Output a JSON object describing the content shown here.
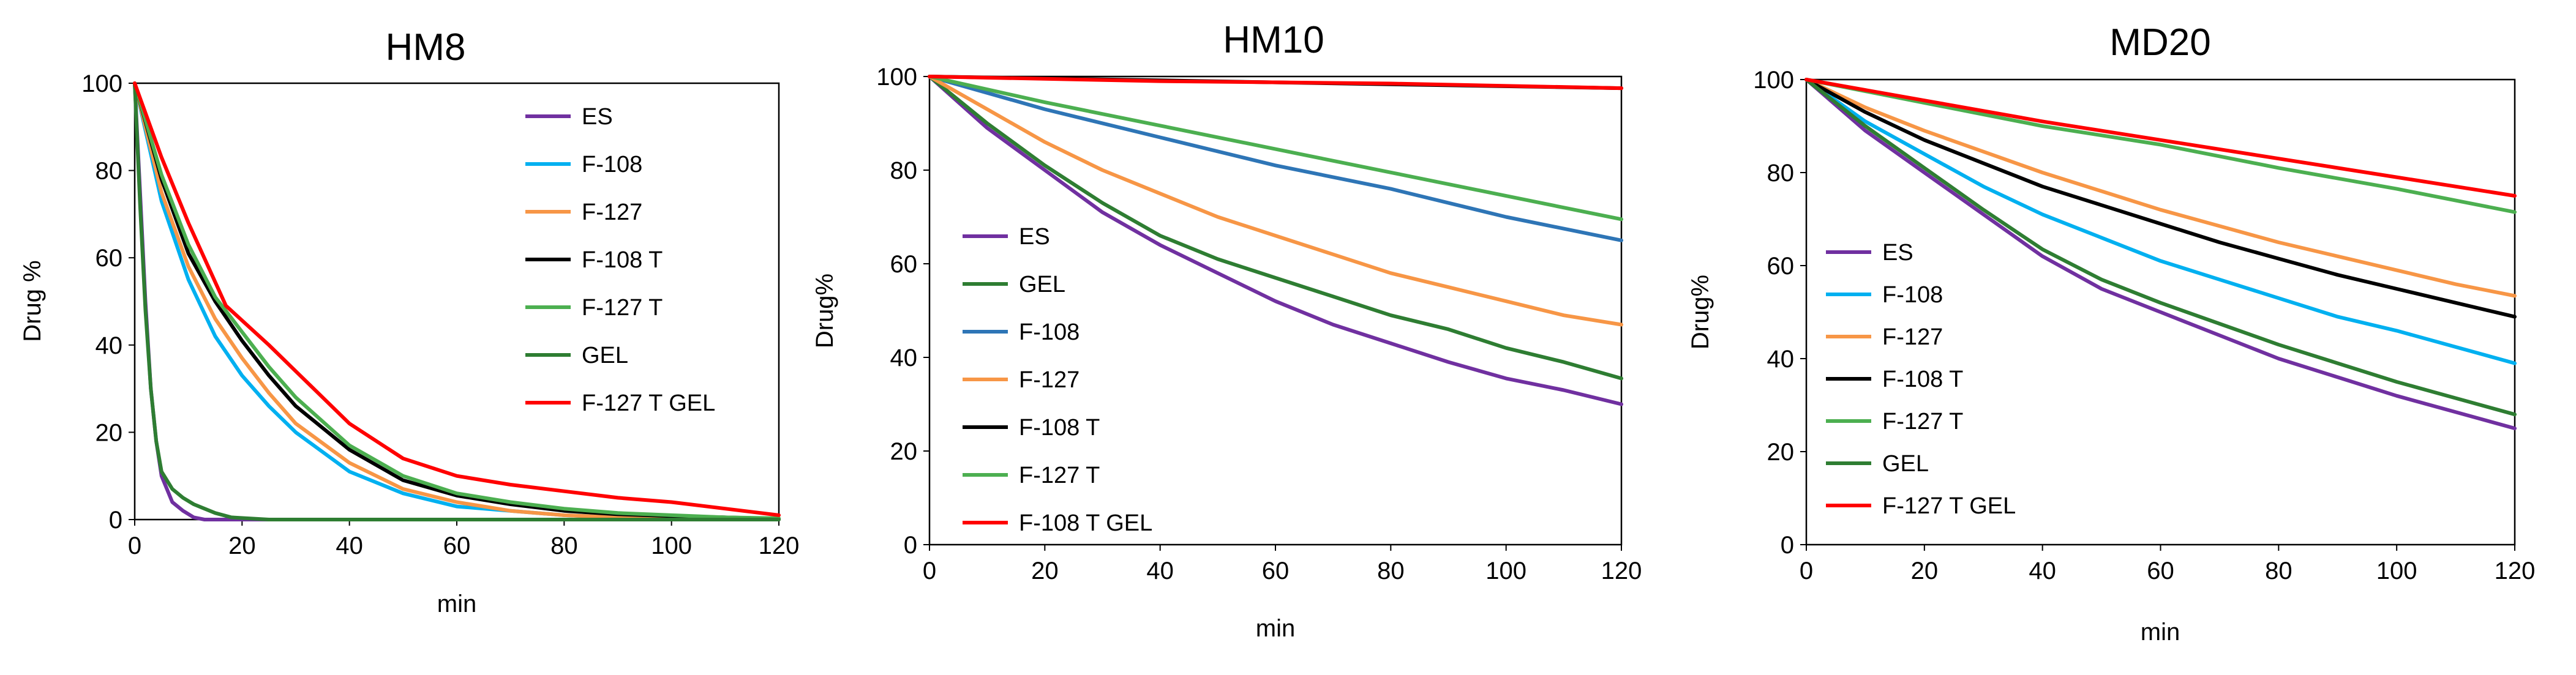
{
  "chart_data": [
    {
      "type": "line",
      "title": "HM8",
      "xlabel": "min",
      "ylabel": "Drug %",
      "xlim": [
        0,
        120
      ],
      "ylim": [
        0,
        100
      ],
      "xticks": [
        0,
        20,
        40,
        60,
        80,
        100,
        120
      ],
      "yticks": [
        0,
        20,
        40,
        60,
        80,
        100
      ],
      "legend_position": "top-right",
      "series": [
        {
          "name": "ES",
          "color": "#7030A0",
          "x": [
            0,
            1,
            2,
            3,
            4,
            5,
            7,
            9,
            11,
            13,
            15,
            20,
            40,
            60,
            80,
            100,
            120
          ],
          "y": [
            100,
            75,
            50,
            30,
            18,
            10,
            4,
            2,
            0.5,
            0,
            0,
            0,
            0,
            0,
            0,
            0,
            0
          ]
        },
        {
          "name": "F-108",
          "color": "#00B0F0",
          "x": [
            0,
            5,
            10,
            15,
            20,
            25,
            30,
            40,
            50,
            60,
            70,
            80,
            90,
            100,
            110,
            120
          ],
          "y": [
            100,
            73,
            55,
            42,
            33,
            26,
            20,
            11,
            6,
            3,
            2,
            1,
            0.5,
            0.3,
            0.2,
            0
          ]
        },
        {
          "name": "F-127",
          "color": "#F79646",
          "x": [
            0,
            5,
            10,
            15,
            20,
            25,
            30,
            40,
            50,
            60,
            70,
            80,
            90,
            100,
            110,
            120
          ],
          "y": [
            100,
            75,
            58,
            46,
            37,
            29,
            22,
            13,
            7,
            4,
            2,
            1,
            0.5,
            0.3,
            0.2,
            0
          ]
        },
        {
          "name": "F-108 T",
          "color": "#000000",
          "x": [
            0,
            5,
            10,
            15,
            20,
            25,
            30,
            40,
            50,
            60,
            70,
            80,
            90,
            100,
            110,
            120
          ],
          "y": [
            100,
            78,
            61,
            50,
            41,
            33,
            26,
            16,
            9,
            5.5,
            3.5,
            2,
            1.2,
            0.8,
            0.5,
            0.2
          ]
        },
        {
          "name": "F-127 T",
          "color": "#4CAF50",
          "x": [
            0,
            5,
            10,
            15,
            20,
            25,
            30,
            40,
            50,
            60,
            70,
            80,
            90,
            100,
            110,
            120
          ],
          "y": [
            100,
            79,
            63,
            51,
            43,
            35,
            28,
            17,
            10,
            6,
            4,
            2.5,
            1.5,
            1,
            0.5,
            0.3
          ]
        },
        {
          "name": "GEL",
          "color": "#2E7D32",
          "x": [
            0,
            1,
            2,
            3,
            4,
            5,
            7,
            9,
            11,
            13,
            15,
            18,
            25,
            40,
            60,
            80,
            100,
            120
          ],
          "y": [
            100,
            72,
            48,
            30,
            18,
            11,
            7,
            5,
            3.5,
            2.5,
            1.5,
            0.5,
            0,
            0,
            0,
            0,
            0,
            0
          ]
        },
        {
          "name": "F-127 T GEL",
          "color": "#FF0000",
          "x": [
            0,
            5,
            10,
            17,
            25,
            30,
            40,
            50,
            60,
            70,
            80,
            90,
            100,
            110,
            120
          ],
          "y": [
            100,
            83,
            68,
            49,
            40,
            34,
            22,
            14,
            10,
            8,
            6.5,
            5,
            4,
            2.5,
            1
          ]
        }
      ]
    },
    {
      "type": "line",
      "title": "HM10",
      "xlabel": "min",
      "ylabel": "Drug%",
      "xlim": [
        0,
        120
      ],
      "ylim": [
        0,
        100
      ],
      "xticks": [
        0,
        20,
        40,
        60,
        80,
        100,
        120
      ],
      "yticks": [
        0,
        20,
        40,
        60,
        80,
        100
      ],
      "legend_position": "bottom-left",
      "series": [
        {
          "name": "ES",
          "color": "#7030A0",
          "x": [
            0,
            10,
            20,
            30,
            40,
            50,
            60,
            70,
            80,
            90,
            100,
            110,
            120
          ],
          "y": [
            100,
            89,
            80,
            71,
            64,
            58,
            52,
            47,
            43,
            39,
            35.5,
            33,
            30
          ]
        },
        {
          "name": "GEL",
          "color": "#2E7D32",
          "x": [
            0,
            10,
            20,
            30,
            40,
            50,
            60,
            70,
            80,
            90,
            100,
            110,
            120
          ],
          "y": [
            100,
            90,
            81,
            73,
            66,
            61,
            57,
            53,
            49,
            46,
            42,
            39,
            35.5
          ]
        },
        {
          "name": "F-108",
          "color": "#2E75B6",
          "x": [
            0,
            20,
            40,
            60,
            80,
            100,
            120
          ],
          "y": [
            100,
            93,
            87,
            81,
            76,
            70,
            65
          ]
        },
        {
          "name": "F-127",
          "color": "#F79646",
          "x": [
            0,
            10,
            20,
            30,
            40,
            50,
            60,
            70,
            80,
            90,
            100,
            110,
            120
          ],
          "y": [
            100,
            93,
            86,
            80,
            75,
            70,
            66,
            62,
            58,
            55,
            52,
            49,
            47
          ]
        },
        {
          "name": "F-108 T",
          "color": "#000000",
          "x": [
            0,
            120
          ],
          "y": [
            100,
            97.5
          ]
        },
        {
          "name": "F-127 T",
          "color": "#4CAF50",
          "x": [
            0,
            20,
            40,
            60,
            80,
            100,
            120
          ],
          "y": [
            100,
            94.5,
            89.5,
            84.5,
            79.5,
            74.5,
            69.5
          ]
        },
        {
          "name": "F-108 T GEL",
          "color": "#FF0000",
          "x": [
            0,
            40,
            80,
            120
          ],
          "y": [
            100,
            99,
            98.5,
            97.5
          ]
        }
      ]
    },
    {
      "type": "line",
      "title": "MD20",
      "xlabel": "min",
      "ylabel": "Drug%",
      "xlim": [
        0,
        120
      ],
      "ylim": [
        0,
        100
      ],
      "xticks": [
        0,
        20,
        40,
        60,
        80,
        100,
        120
      ],
      "yticks": [
        0,
        20,
        40,
        60,
        80,
        100
      ],
      "legend_position": "bottom-left",
      "series": [
        {
          "name": "ES",
          "color": "#7030A0",
          "x": [
            0,
            10,
            20,
            30,
            40,
            50,
            60,
            70,
            80,
            90,
            100,
            110,
            120
          ],
          "y": [
            100,
            89,
            80,
            71,
            62,
            55,
            50,
            45,
            40,
            36,
            32,
            28.5,
            25
          ]
        },
        {
          "name": "F-108",
          "color": "#00B0F0",
          "x": [
            0,
            10,
            20,
            30,
            40,
            50,
            60,
            70,
            80,
            90,
            100,
            110,
            120
          ],
          "y": [
            100,
            91,
            84,
            77,
            71,
            66,
            61,
            57,
            53,
            49,
            46,
            42.5,
            39
          ]
        },
        {
          "name": "F-127",
          "color": "#F79646",
          "x": [
            0,
            10,
            20,
            30,
            40,
            50,
            60,
            70,
            80,
            90,
            100,
            110,
            120
          ],
          "y": [
            100,
            94,
            89,
            84.5,
            80,
            76,
            72,
            68.5,
            65,
            62,
            59,
            56,
            53.5
          ]
        },
        {
          "name": "F-108 T",
          "color": "#000000",
          "x": [
            0,
            10,
            20,
            30,
            40,
            50,
            60,
            70,
            80,
            90,
            100,
            110,
            120
          ],
          "y": [
            100,
            93,
            87,
            82,
            77,
            73,
            69,
            65,
            61.5,
            58,
            55,
            52,
            49
          ]
        },
        {
          "name": "F-127 T",
          "color": "#4CAF50",
          "x": [
            0,
            20,
            40,
            60,
            80,
            100,
            120
          ],
          "y": [
            100,
            95,
            90,
            86,
            81,
            76.5,
            71.5
          ]
        },
        {
          "name": "GEL",
          "color": "#2E7D32",
          "x": [
            0,
            10,
            20,
            30,
            40,
            50,
            60,
            70,
            80,
            90,
            100,
            110,
            120
          ],
          "y": [
            100,
            90,
            81,
            72,
            63.5,
            57,
            52,
            47.5,
            43,
            39,
            35,
            31.5,
            28
          ]
        },
        {
          "name": "F-127 T GEL",
          "color": "#FF0000",
          "x": [
            0,
            20,
            40,
            60,
            80,
            100,
            120
          ],
          "y": [
            100,
            95.5,
            91,
            87,
            83,
            79,
            75
          ]
        }
      ]
    }
  ]
}
